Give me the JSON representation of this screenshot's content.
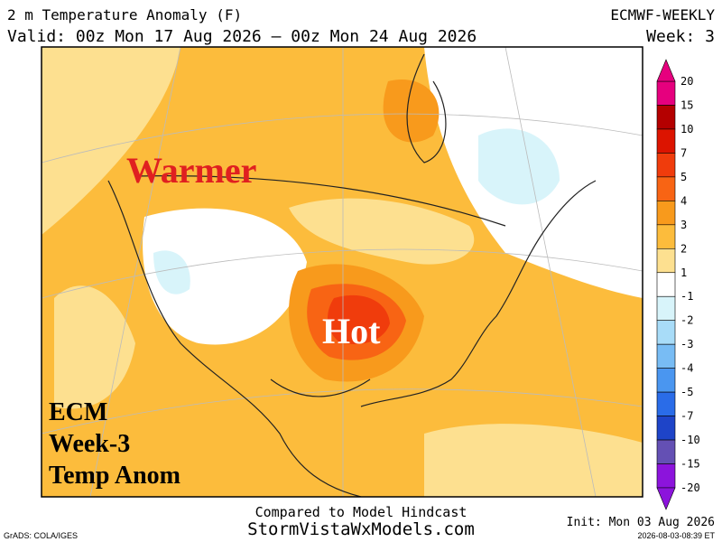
{
  "header": {
    "title": "2 m Temperature Anomaly (F)",
    "valid": "Valid: 00z Mon 17 Aug 2026 — 00z Mon 24 Aug 2026",
    "model": "ECMWF-WEEKLY",
    "week": "Week: 3"
  },
  "annotations": {
    "warmer": "Warmer",
    "hot": "Hot",
    "label": [
      "ECM",
      "Week-3",
      "Temp Anom"
    ]
  },
  "colorbar": {
    "levels": [
      20,
      15,
      10,
      7,
      5,
      4,
      3,
      2,
      1,
      -1,
      -2,
      -3,
      -4,
      -5,
      -7,
      -10,
      -15,
      -20
    ],
    "colors": [
      "#e6007e",
      "#b40000",
      "#dc1400",
      "#f03c0c",
      "#f86414",
      "#f89a1c",
      "#fcbc3c",
      "#fde090",
      "#ffffff",
      "#d8f4fa",
      "#a8dcf8",
      "#78bcf4",
      "#4a96f0",
      "#2a6ce8",
      "#1e44c8",
      "#6450b4",
      "#8c14dc"
    ]
  },
  "footer": {
    "compared": "Compared to Model Hindcast",
    "site": "StormVistaWxModels.com",
    "init": "Init: Mon 03 Aug 2026",
    "grads": "GrADS: COLA/IGES",
    "stamp": "2026-08-03-08:39 ET"
  }
}
